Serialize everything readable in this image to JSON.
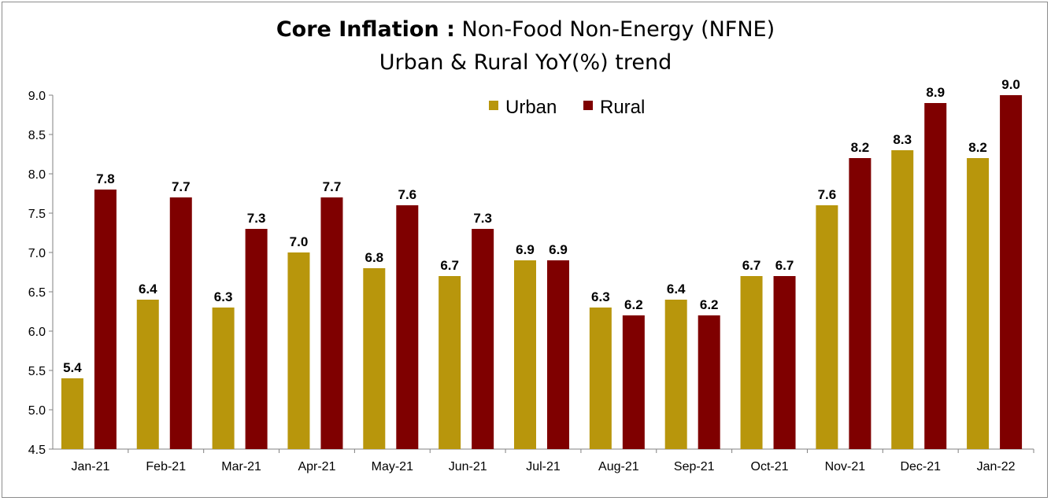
{
  "chart_data": {
    "type": "bar",
    "title_bold": "Core Inflation :",
    "title_rest": "Non-Food Non-Energy (NFNE)",
    "subtitle": "Urban & Rural YoY(%)  trend",
    "categories": [
      "Jan-21",
      "Feb-21",
      "Mar-21",
      "Apr-21",
      "May-21",
      "Jun-21",
      "Jul-21",
      "Aug-21",
      "Sep-21",
      "Oct-21",
      "Nov-21",
      "Dec-21",
      "Jan-22"
    ],
    "series": [
      {
        "name": "Urban",
        "color": "#b8960c",
        "values": [
          5.4,
          6.4,
          6.3,
          7.0,
          6.8,
          6.7,
          6.9,
          6.3,
          6.4,
          6.7,
          7.6,
          8.3,
          8.2
        ]
      },
      {
        "name": "Rural",
        "color": "#7f0000",
        "values": [
          7.8,
          7.7,
          7.3,
          7.7,
          7.6,
          7.3,
          6.9,
          6.2,
          6.2,
          6.7,
          8.2,
          8.9,
          9.0
        ]
      }
    ],
    "ylim": [
      4.5,
      9.0
    ],
    "yticks": [
      "4.5",
      "5.0",
      "5.5",
      "6.0",
      "6.5",
      "7.0",
      "7.5",
      "8.0",
      "8.5",
      "9.0"
    ],
    "xlabel": "",
    "ylabel": "",
    "grid": false,
    "legend": "top-center"
  }
}
